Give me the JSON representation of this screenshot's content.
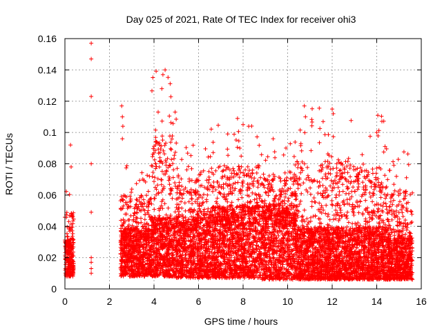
{
  "chart_data": {
    "type": "scatter",
    "title": "Day 025 of 2021, Rate Of TEC Index for receiver ohi3",
    "xlabel": "GPS time / hours",
    "ylabel": "ROTI / TECUs",
    "xlim": [
      0,
      16
    ],
    "ylim": [
      0,
      0.16
    ],
    "x_ticks": [
      "0",
      "2",
      "4",
      "6",
      "8",
      "10",
      "12",
      "14",
      "16"
    ],
    "y_ticks": [
      "0",
      "0.02",
      "0.04",
      "0.06",
      "0.08",
      "0.1",
      "0.12",
      "0.14",
      "0.16"
    ],
    "grid": true,
    "marker": "+",
    "color": "#ff0000",
    "clusters": [
      {
        "x_start": 0.0,
        "x_end": 0.4,
        "base": 0.008,
        "typical": 0.025,
        "peak": 0.066
      },
      {
        "x_start": 2.5,
        "x_end": 3.9,
        "base": 0.008,
        "typical": 0.03,
        "peak": 0.08
      },
      {
        "x_start": 3.9,
        "x_end": 5.0,
        "base": 0.008,
        "typical": 0.035,
        "peak": 0.14
      },
      {
        "x_start": 5.0,
        "x_end": 6.5,
        "base": 0.007,
        "typical": 0.035,
        "peak": 0.094
      },
      {
        "x_start": 6.5,
        "x_end": 8.8,
        "base": 0.007,
        "typical": 0.04,
        "peak": 0.105
      },
      {
        "x_start": 8.8,
        "x_end": 10.4,
        "base": 0.006,
        "typical": 0.04,
        "peak": 0.096
      },
      {
        "x_start": 10.4,
        "x_end": 12.9,
        "base": 0.006,
        "typical": 0.03,
        "peak": 0.116
      },
      {
        "x_start": 12.9,
        "x_end": 14.5,
        "base": 0.006,
        "typical": 0.03,
        "peak": 0.111
      },
      {
        "x_start": 14.5,
        "x_end": 15.6,
        "base": 0.006,
        "typical": 0.025,
        "peak": 0.088
      }
    ],
    "outliers": [
      {
        "x": 1.18,
        "y": 0.157
      },
      {
        "x": 1.18,
        "y": 0.147
      },
      {
        "x": 1.18,
        "y": 0.123
      },
      {
        "x": 1.18,
        "y": 0.08
      },
      {
        "x": 1.18,
        "y": 0.049
      },
      {
        "x": 1.18,
        "y": 0.02
      },
      {
        "x": 1.18,
        "y": 0.017
      },
      {
        "x": 1.18,
        "y": 0.013
      },
      {
        "x": 1.18,
        "y": 0.01
      },
      {
        "x": 0.25,
        "y": 0.092
      },
      {
        "x": 0.28,
        "y": 0.078
      },
      {
        "x": 2.55,
        "y": 0.117
      },
      {
        "x": 2.58,
        "y": 0.11
      },
      {
        "x": 2.6,
        "y": 0.104
      },
      {
        "x": 2.58,
        "y": 0.096
      },
      {
        "x": 4.4,
        "y": 0.137
      },
      {
        "x": 4.5,
        "y": 0.14
      },
      {
        "x": 4.35,
        "y": 0.128
      },
      {
        "x": 10.75,
        "y": 0.117
      },
      {
        "x": 10.8,
        "y": 0.11
      },
      {
        "x": 12.0,
        "y": 0.115
      },
      {
        "x": 12.05,
        "y": 0.112
      },
      {
        "x": 14.05,
        "y": 0.111
      },
      {
        "x": 14.0,
        "y": 0.1
      },
      {
        "x": 9.35,
        "y": 0.096
      },
      {
        "x": 7.75,
        "y": 0.109
      },
      {
        "x": 8.0,
        "y": 0.105
      },
      {
        "x": 8.25,
        "y": 0.104
      }
    ]
  }
}
